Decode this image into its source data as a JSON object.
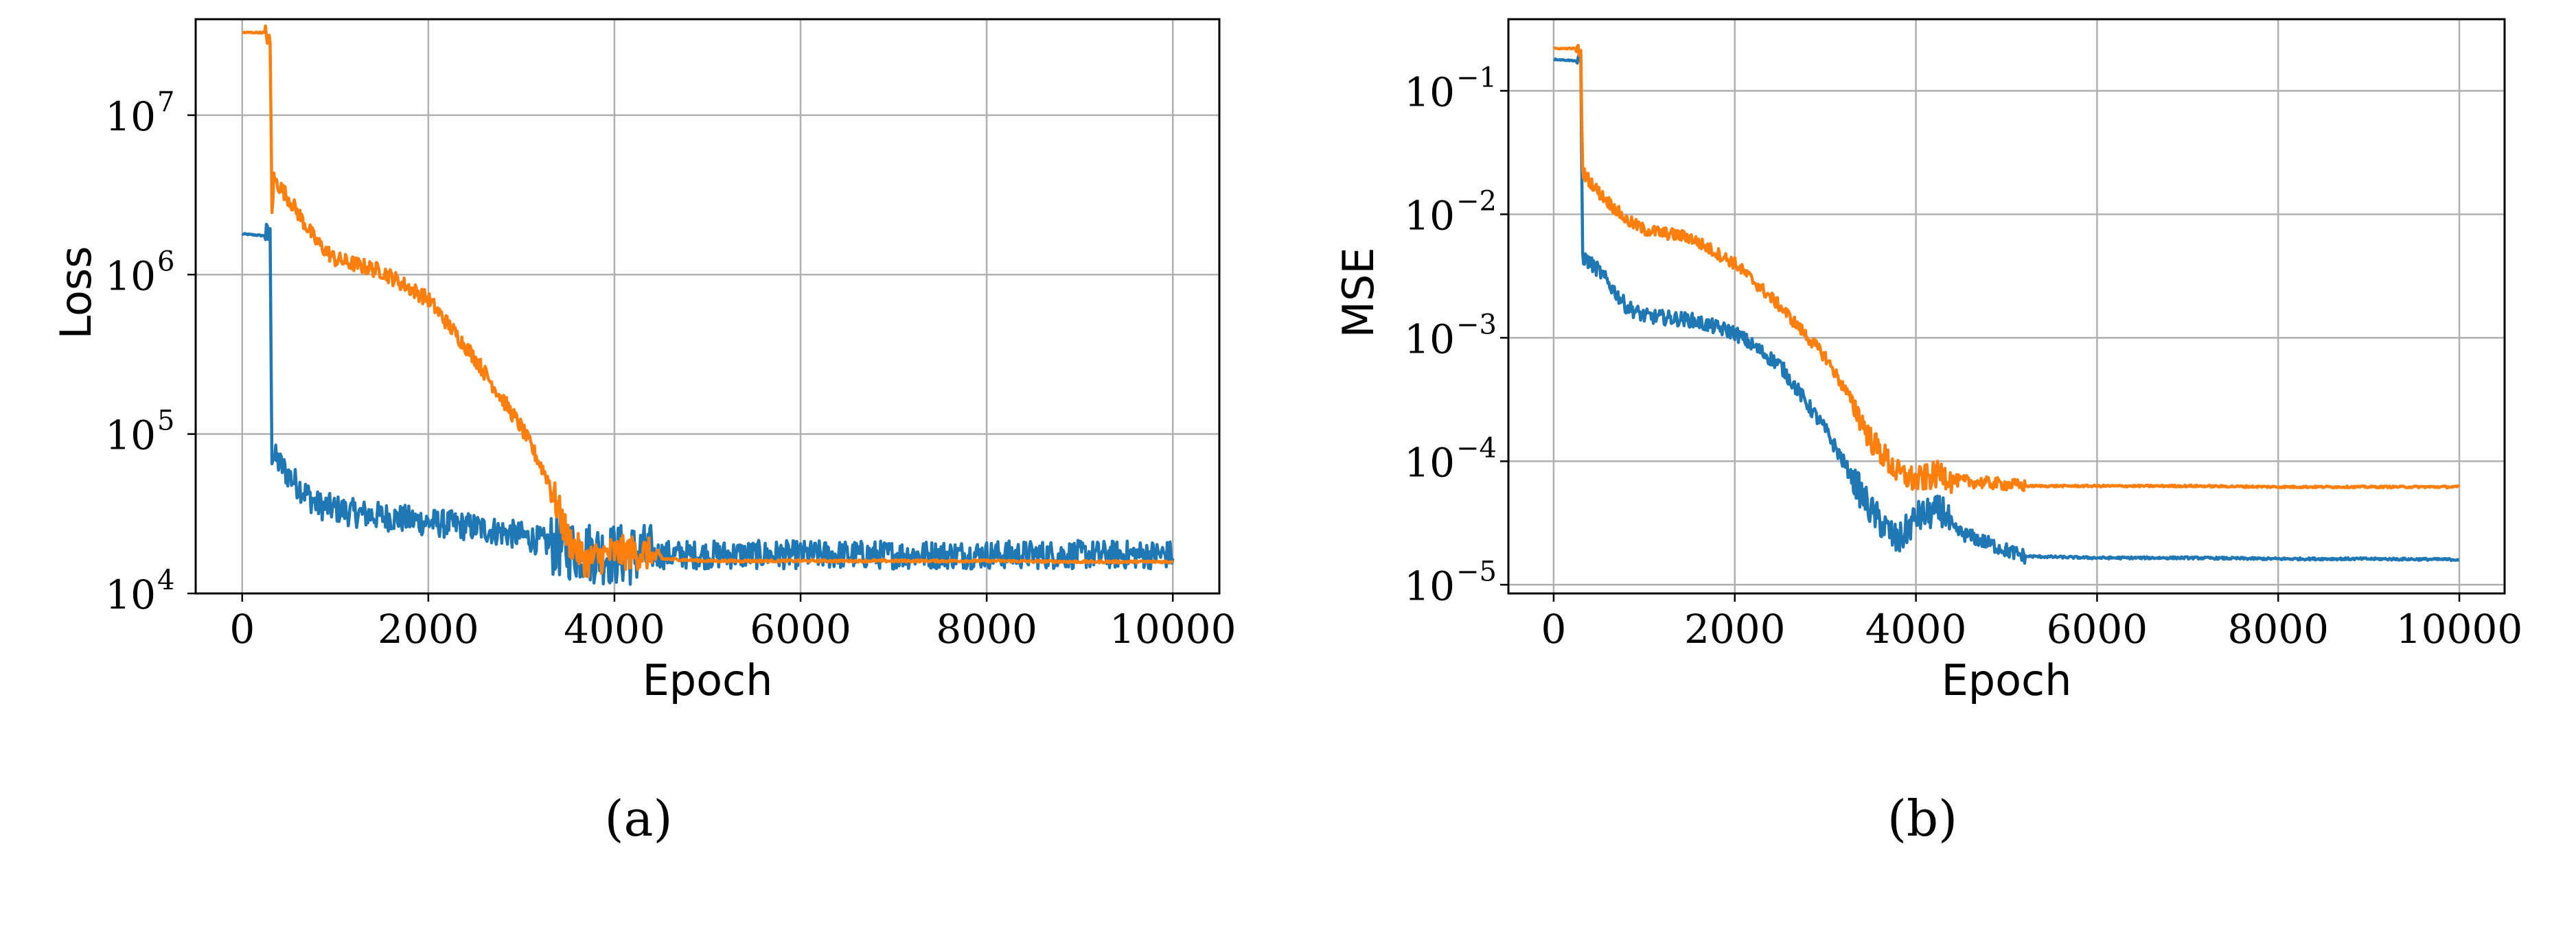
{
  "colors": {
    "series_1": "#1f77b4",
    "series_2": "#ff7f0e",
    "grid": "#b0b0b0",
    "axes": "#000000"
  },
  "chart_data": [
    {
      "type": "line",
      "caption": "(a)",
      "xlabel": "Epoch",
      "ylabel": "Loss",
      "yscale": "log",
      "grid": true,
      "xlim": [
        -500,
        10500
      ],
      "ylim": [
        10000,
        40000000
      ],
      "xticks": [
        "0",
        "2000",
        "4000",
        "6000",
        "8000",
        "10000"
      ],
      "yticks": [
        {
          "base": "10",
          "exp": "4",
          "value": 10000
        },
        {
          "base": "10",
          "exp": "5",
          "value": 100000
        },
        {
          "base": "10",
          "exp": "6",
          "value": 1000000
        },
        {
          "base": "10",
          "exp": "7",
          "value": 10000000
        }
      ],
      "series": [
        {
          "color": "#1f77b4",
          "noise": 0.09,
          "x": [
            0,
            250,
            300,
            320,
            500,
            800,
            1200,
            1600,
            2000,
            2500,
            3000,
            3500,
            4000,
            5000,
            6000,
            7000,
            8000,
            9000,
            10000
          ],
          "values": [
            1800000,
            1750000,
            1700000,
            75000,
            55000,
            36000,
            32000,
            30000,
            28000,
            26000,
            23000,
            19000,
            17500,
            17500,
            17500,
            17500,
            17500,
            17500,
            17500
          ]
        },
        {
          "color": "#ff7f0e",
          "noise": 0.05,
          "x": [
            0,
            250,
            300,
            320,
            340,
            500,
            800,
            1000,
            1500,
            2000,
            2500,
            3000,
            3300,
            3500,
            3700,
            4000,
            4300,
            4500,
            5000,
            6000,
            7000,
            8000,
            9000,
            10000
          ],
          "values": [
            33000000,
            33000000,
            28000000,
            2500000,
            4000000,
            3000000,
            1600000,
            1250000,
            1050000,
            700000,
            300000,
            110000,
            50000,
            22000,
            16000,
            18000,
            18000,
            16500,
            16000,
            16000,
            16000,
            16000,
            15800,
            15800
          ]
        }
      ]
    },
    {
      "type": "line",
      "caption": "(b)",
      "xlabel": "Epoch",
      "ylabel": "MSE",
      "yscale": "log",
      "grid": true,
      "xlim": [
        -500,
        10500
      ],
      "ylim": [
        8.5e-06,
        0.38
      ],
      "xticks": [
        "0",
        "2000",
        "4000",
        "6000",
        "8000",
        "10000"
      ],
      "yticks": [
        {
          "base": "10",
          "exp": "−5",
          "value": 1e-05
        },
        {
          "base": "10",
          "exp": "−4",
          "value": 0.0001
        },
        {
          "base": "10",
          "exp": "−3",
          "value": 0.001
        },
        {
          "base": "10",
          "exp": "−2",
          "value": 0.01
        },
        {
          "base": "10",
          "exp": "−1",
          "value": 0.1
        }
      ],
      "series": [
        {
          "color": "#1f77b4",
          "noise": 0.06,
          "x": [
            0,
            250,
            300,
            320,
            500,
            800,
            1000,
            1500,
            2000,
            2500,
            3000,
            3500,
            3800,
            4000,
            4300,
            4400,
            5000,
            5200,
            6000,
            7000,
            8000,
            9000,
            10000
          ],
          "values": [
            0.18,
            0.175,
            0.17,
            0.0045,
            0.0035,
            0.0018,
            0.0015,
            0.0014,
            0.0011,
            0.0006,
            0.00018,
            4e-05,
            2.2e-05,
            3.5e-05,
            4e-05,
            2.8e-05,
            1.9e-05,
            1.7e-05,
            1.65e-05,
            1.65e-05,
            1.62e-05,
            1.62e-05,
            1.6e-05
          ]
        },
        {
          "color": "#ff7f0e",
          "noise": 0.05,
          "x": [
            0,
            250,
            300,
            320,
            500,
            800,
            1000,
            1500,
            2000,
            2500,
            3000,
            3300,
            3500,
            3800,
            4000,
            4300,
            4400,
            5000,
            5200,
            6000,
            7000,
            8000,
            9000,
            10000
          ],
          "values": [
            0.22,
            0.22,
            0.2,
            0.022,
            0.015,
            0.009,
            0.0075,
            0.0065,
            0.004,
            0.0018,
            0.0007,
            0.0003,
            0.00015,
            8e-05,
            7e-05,
            8e-05,
            7e-05,
            6.5e-05,
            6.3e-05,
            6.3e-05,
            6.3e-05,
            6.2e-05,
            6.2e-05,
            6.2e-05
          ]
        }
      ]
    }
  ]
}
